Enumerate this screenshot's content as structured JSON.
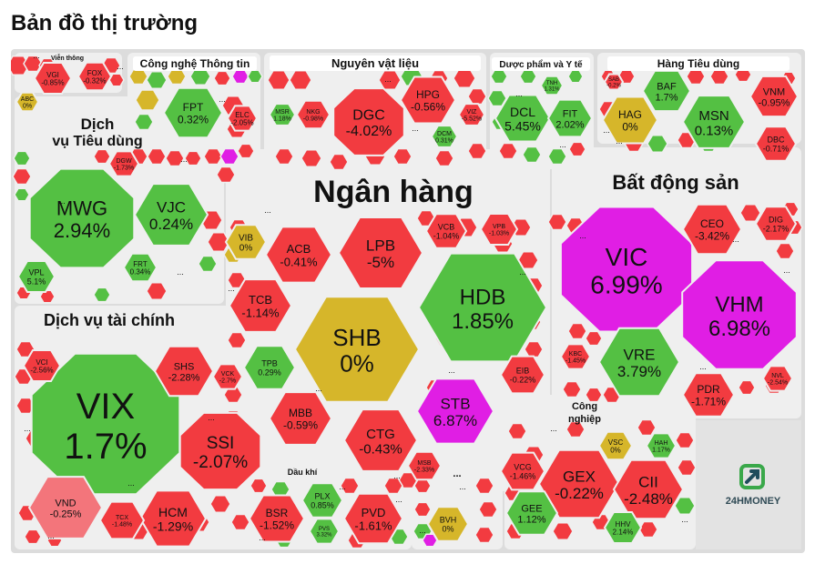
{
  "page": {
    "title": "Bản đồ thị trường"
  },
  "brand": {
    "name": "24HMONEY"
  },
  "colors": {
    "up": "#54c043",
    "down": "#f23b40",
    "flat": "#d6b62a",
    "ceiling": "#e01ee4",
    "down_light": "#f3757b",
    "sector_bg": "#efefef",
    "sector_label_bg": "#ffffff"
  },
  "sectors": [
    {
      "key": "vien_thong",
      "label": "Viễn thông"
    },
    {
      "key": "cntt",
      "label": "Công nghệ Thông tin"
    },
    {
      "key": "nvl",
      "label": "Nguyên vật liệu"
    },
    {
      "key": "duoc",
      "label": "Dược phẩm và Y tế"
    },
    {
      "key": "htd",
      "label": "Hàng Tiêu dùng"
    },
    {
      "key": "dvtd",
      "label_line1": "Dịch",
      "label_line2": "vụ Tiêu dùng"
    },
    {
      "key": "ngan_hang",
      "label": "Ngân hàng"
    },
    {
      "key": "bds",
      "label": "Bất động sản"
    },
    {
      "key": "dvtc",
      "label": "Dịch vụ tài chính"
    },
    {
      "key": "dau_khi",
      "label": "Dầu khí"
    },
    {
      "key": "cong_nghiep",
      "label_line1": "Công",
      "label_line2": "nghiệp"
    },
    {
      "key": "misc",
      "label": "..."
    }
  ],
  "tiles": [
    {
      "ticker": "VGI",
      "change": "-0.85%",
      "status": "down"
    },
    {
      "ticker": "FOX",
      "change": "-0.32%",
      "status": "down"
    },
    {
      "ticker": "ABC",
      "change": "0%",
      "status": "flat"
    },
    {
      "ticker": "FPT",
      "change": "0.32%",
      "status": "up"
    },
    {
      "ticker": "ELC",
      "change": "-2.05%",
      "status": "down"
    },
    {
      "ticker": "DGC",
      "change": "-4.02%",
      "status": "down"
    },
    {
      "ticker": "HPG",
      "change": "-0.56%",
      "status": "down"
    },
    {
      "ticker": "MSR",
      "change": "1.18%",
      "status": "up"
    },
    {
      "ticker": "NKG",
      "change": "-0.98%",
      "status": "down"
    },
    {
      "ticker": "VIZ",
      "change": "-5.52%",
      "status": "down"
    },
    {
      "ticker": "DCM",
      "change": "0.31%",
      "status": "up"
    },
    {
      "ticker": "DCL",
      "change": "5.45%",
      "status": "up"
    },
    {
      "ticker": "FIT",
      "change": "2.02%",
      "status": "up"
    },
    {
      "ticker": "TNH",
      "change": "1.31%",
      "status": "up"
    },
    {
      "ticker": "SAB",
      "change": "-0.2%",
      "status": "down"
    },
    {
      "ticker": "BAF",
      "change": "1.7%",
      "status": "up"
    },
    {
      "ticker": "HAG",
      "change": "0%",
      "status": "flat"
    },
    {
      "ticker": "MSN",
      "change": "0.13%",
      "status": "up"
    },
    {
      "ticker": "VNM",
      "change": "-0.95%",
      "status": "down"
    },
    {
      "ticker": "DBC",
      "change": "-0.71%",
      "status": "down"
    },
    {
      "ticker": "MWG",
      "change": "2.94%",
      "status": "up"
    },
    {
      "ticker": "VJC",
      "change": "0.24%",
      "status": "up"
    },
    {
      "ticker": "DGW",
      "change": "-1.73%",
      "status": "down"
    },
    {
      "ticker": "VPL",
      "change": "5.1%",
      "status": "up"
    },
    {
      "ticker": "FRT",
      "change": "0.34%",
      "status": "up"
    },
    {
      "ticker": "VIB",
      "change": "0%",
      "status": "flat"
    },
    {
      "ticker": "ACB",
      "change": "-0.41%",
      "status": "down"
    },
    {
      "ticker": "LPB",
      "change": "-5%",
      "status": "down"
    },
    {
      "ticker": "VCB",
      "change": "-1.04%",
      "status": "down"
    },
    {
      "ticker": "VPB",
      "change": "-1.03%",
      "status": "down"
    },
    {
      "ticker": "TCB",
      "change": "-1.14%",
      "status": "down"
    },
    {
      "ticker": "SHB",
      "change": "0%",
      "status": "flat"
    },
    {
      "ticker": "HDB",
      "change": "1.85%",
      "status": "up"
    },
    {
      "ticker": "TPB",
      "change": "0.29%",
      "status": "up"
    },
    {
      "ticker": "MBB",
      "change": "-0.59%",
      "status": "down"
    },
    {
      "ticker": "CTG",
      "change": "-0.43%",
      "status": "down"
    },
    {
      "ticker": "STB",
      "change": "6.87%",
      "status": "ceiling"
    },
    {
      "ticker": "EIB",
      "change": "-0.22%",
      "status": "down"
    },
    {
      "ticker": "MSB",
      "change": "-2.33%",
      "status": "down"
    },
    {
      "ticker": "VIC",
      "change": "6.99%",
      "status": "ceiling"
    },
    {
      "ticker": "VHM",
      "change": "6.98%",
      "status": "ceiling"
    },
    {
      "ticker": "CEO",
      "change": "-3.42%",
      "status": "down"
    },
    {
      "ticker": "DIG",
      "change": "-2.17%",
      "status": "down"
    },
    {
      "ticker": "VRE",
      "change": "3.79%",
      "status": "up"
    },
    {
      "ticker": "PDR",
      "change": "-1.71%",
      "status": "down"
    },
    {
      "ticker": "KBC",
      "change": "-1.45%",
      "status": "down"
    },
    {
      "ticker": "NVL",
      "change": "-2.54%",
      "status": "down"
    },
    {
      "ticker": "VIX",
      "change": "1.7%",
      "status": "up"
    },
    {
      "ticker": "SSI",
      "change": "-2.07%",
      "status": "down"
    },
    {
      "ticker": "SHS",
      "change": "-2.28%",
      "status": "down"
    },
    {
      "ticker": "VCI",
      "change": "-2.56%",
      "status": "down"
    },
    {
      "ticker": "VCK",
      "change": "-2.7%",
      "status": "down"
    },
    {
      "ticker": "HCM",
      "change": "-1.29%",
      "status": "down"
    },
    {
      "ticker": "VND",
      "change": "-0.25%",
      "status": "down_light"
    },
    {
      "ticker": "TCX",
      "change": "-1.48%",
      "status": "down"
    },
    {
      "ticker": "BSR",
      "change": "-1.52%",
      "status": "down"
    },
    {
      "ticker": "PLX",
      "change": "0.85%",
      "status": "up"
    },
    {
      "ticker": "PVD",
      "change": "-1.61%",
      "status": "down"
    },
    {
      "ticker": "PVS",
      "change": "3.32%",
      "status": "up"
    },
    {
      "ticker": "BVH",
      "change": "0%",
      "status": "flat"
    },
    {
      "ticker": "GEX",
      "change": "-0.22%",
      "status": "down"
    },
    {
      "ticker": "CII",
      "change": "-2.48%",
      "status": "down"
    },
    {
      "ticker": "VCG",
      "change": "-1.46%",
      "status": "down"
    },
    {
      "ticker": "GEE",
      "change": "1.12%",
      "status": "up"
    },
    {
      "ticker": "VSC",
      "change": "0%",
      "status": "flat"
    },
    {
      "ticker": "HAH",
      "change": "1.17%",
      "status": "up"
    },
    {
      "ticker": "HHV",
      "change": "2.14%",
      "status": "up"
    }
  ],
  "more_label": "..."
}
